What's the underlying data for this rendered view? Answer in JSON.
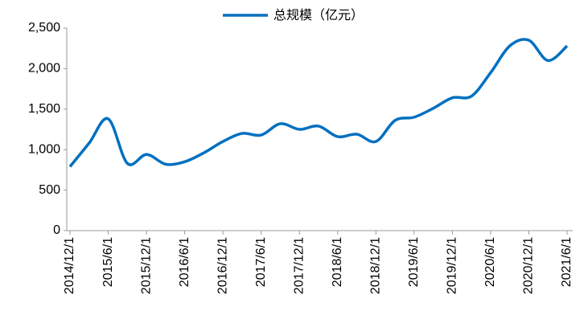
{
  "chart_data": {
    "type": "line",
    "categories": [
      "2014/12/1",
      null,
      "2015/6/1",
      null,
      "2015/12/1",
      null,
      "2016/6/1",
      null,
      "2016/12/1",
      null,
      "2017/6/1",
      null,
      "2017/12/1",
      null,
      "2018/6/1",
      null,
      "2018/12/1",
      null,
      "2019/6/1",
      null,
      "2019/12/1",
      null,
      "2020/6/1",
      null,
      "2020/12/1",
      null,
      "2021/6/1"
    ],
    "series": [
      {
        "name": "总规模（亿元）",
        "color": "#0070c0",
        "values": [
          790,
          1080,
          1380,
          830,
          940,
          820,
          850,
          960,
          1100,
          1200,
          1180,
          1320,
          1250,
          1290,
          1160,
          1190,
          1100,
          1360,
          1400,
          1510,
          1640,
          1660,
          1950,
          2280,
          2350,
          2100,
          2280
        ]
      }
    ],
    "ylim": [
      0,
      2500
    ],
    "yticks": [
      0,
      500,
      {
        "value": 1000,
        "label": "1,000"
      },
      {
        "value": 1500,
        "label": "1,500"
      },
      {
        "value": 2000,
        "label": "2,000"
      },
      {
        "value": 2500,
        "label": "2,500"
      }
    ],
    "legend": "top"
  }
}
